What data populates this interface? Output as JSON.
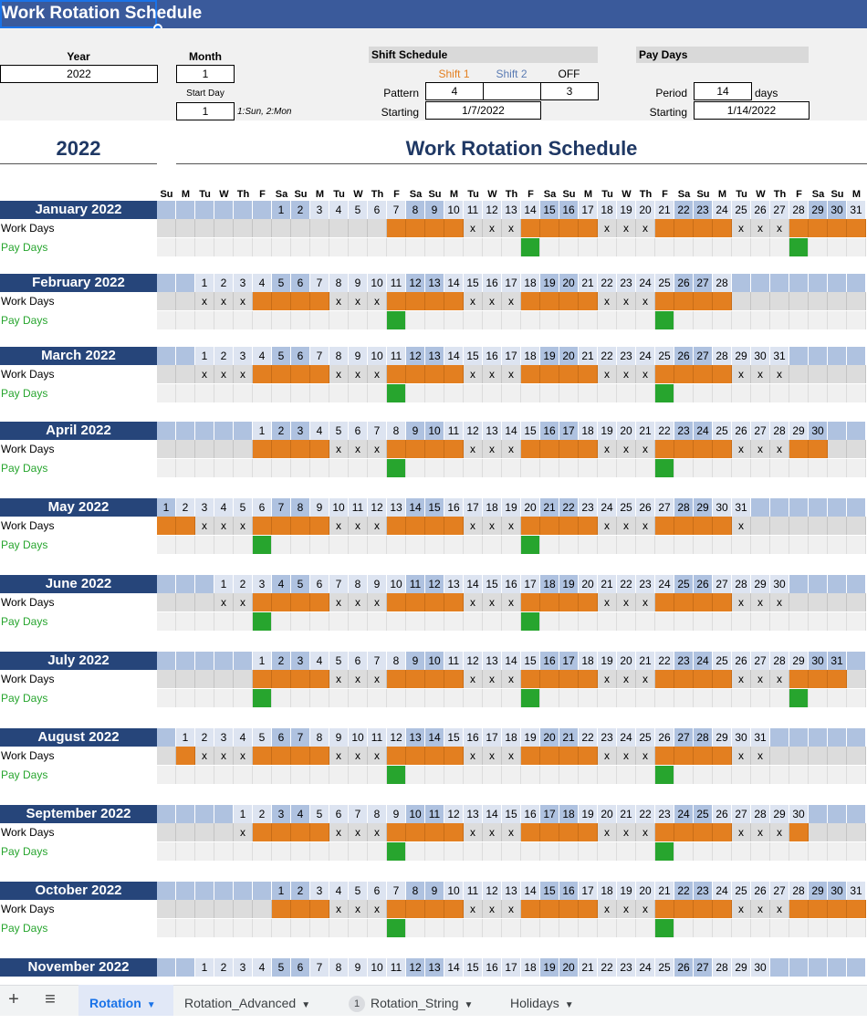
{
  "sheet": {
    "title": "Work Rotation Schedule",
    "year_label": "Year",
    "year_value": "2022",
    "month_label": "Month",
    "month_value": "1",
    "start_day_label": "Start Day",
    "start_day_value": "1",
    "start_day_hint": "1:Sun, 2:Mon",
    "shift_schedule_label": "Shift Schedule",
    "shift1_label": "Shift 1",
    "shift2_label": "Shift 2",
    "off_label": "OFF",
    "pattern_label": "Pattern",
    "pattern_shift1": "4",
    "pattern_shift2": "",
    "pattern_off": "3",
    "starting_label": "Starting",
    "shift_starting_value": "1/7/2022",
    "pay_days_label": "Pay Days",
    "period_label": "Period",
    "period_value": "14",
    "period_unit": "days",
    "pay_starting_value": "1/14/2022",
    "big_year": "2022",
    "big_title": "Work Rotation Schedule",
    "work_days_label": "Work Days",
    "pay_days_row_label": "Pay Days",
    "off_marker": "x"
  },
  "dow_headers": [
    "Su",
    "M",
    "Tu",
    "W",
    "Th",
    "F",
    "Sa",
    "Su",
    "M",
    "Tu",
    "W",
    "Th",
    "F",
    "Sa",
    "Su",
    "M",
    "Tu",
    "W",
    "Th",
    "F",
    "Sa",
    "Su",
    "M",
    "Tu",
    "W",
    "Th",
    "F",
    "Sa",
    "Su",
    "M",
    "Tu",
    "W",
    "Th",
    "F",
    "Sa",
    "Su",
    "M"
  ],
  "months": [
    {
      "name": "January 2022",
      "offset": 6,
      "days": 31,
      "visible_rows": 3,
      "work": [
        7,
        8,
        9,
        10,
        14,
        15,
        16,
        17,
        21,
        22,
        23,
        24,
        28,
        29,
        30,
        31
      ],
      "off": [
        11,
        12,
        13,
        18,
        19,
        20,
        25,
        26,
        27
      ],
      "pay": [
        14,
        28
      ]
    },
    {
      "name": "February 2022",
      "offset": 2,
      "days": 28,
      "visible_rows": 3,
      "work": [
        4,
        5,
        6,
        7,
        11,
        12,
        13,
        14,
        18,
        19,
        20,
        21,
        25,
        26,
        27,
        28
      ],
      "off": [
        1,
        2,
        3,
        8,
        9,
        10,
        15,
        16,
        17,
        22,
        23,
        24
      ],
      "pay": [
        11,
        25
      ]
    },
    {
      "name": "March 2022",
      "offset": 2,
      "days": 31,
      "visible_rows": 3,
      "work": [
        4,
        5,
        6,
        7,
        11,
        12,
        13,
        14,
        18,
        19,
        20,
        21,
        25,
        26,
        27,
        28
      ],
      "off": [
        1,
        2,
        3,
        8,
        9,
        10,
        15,
        16,
        17,
        22,
        23,
        24,
        29,
        30,
        31
      ],
      "pay": [
        11,
        25
      ]
    },
    {
      "name": "April 2022",
      "offset": 5,
      "days": 30,
      "visible_rows": 3,
      "work": [
        1,
        2,
        3,
        4,
        8,
        9,
        10,
        11,
        15,
        16,
        17,
        18,
        22,
        23,
        24,
        25,
        29,
        30
      ],
      "off": [
        5,
        6,
        7,
        12,
        13,
        14,
        19,
        20,
        21,
        26,
        27,
        28
      ],
      "pay": [
        8,
        22
      ]
    },
    {
      "name": "May 2022",
      "offset": 0,
      "days": 31,
      "visible_rows": 3,
      "work": [
        1,
        2,
        6,
        7,
        8,
        9,
        13,
        14,
        15,
        16,
        20,
        21,
        22,
        23,
        27,
        28,
        29,
        30
      ],
      "off": [
        3,
        4,
        5,
        10,
        11,
        12,
        17,
        18,
        19,
        24,
        25,
        26,
        31
      ],
      "pay": [
        6,
        20
      ]
    },
    {
      "name": "June 2022",
      "offset": 3,
      "days": 30,
      "visible_rows": 3,
      "work": [
        3,
        4,
        5,
        6,
        10,
        11,
        12,
        13,
        17,
        18,
        19,
        20,
        24,
        25,
        26,
        27
      ],
      "off": [
        1,
        2,
        7,
        8,
        9,
        14,
        15,
        16,
        21,
        22,
        23,
        28,
        29,
        30
      ],
      "pay": [
        3,
        17
      ]
    },
    {
      "name": "July 2022",
      "offset": 5,
      "days": 31,
      "visible_rows": 3,
      "work": [
        1,
        2,
        3,
        4,
        8,
        9,
        10,
        11,
        15,
        16,
        17,
        18,
        22,
        23,
        24,
        25,
        29,
        30,
        31
      ],
      "off": [
        5,
        6,
        7,
        12,
        13,
        14,
        19,
        20,
        21,
        26,
        27,
        28
      ],
      "pay": [
        1,
        15,
        29
      ]
    },
    {
      "name": "August 2022",
      "offset": 1,
      "days": 31,
      "visible_rows": 3,
      "work": [
        1,
        5,
        6,
        7,
        8,
        12,
        13,
        14,
        15,
        19,
        20,
        21,
        22,
        26,
        27,
        28,
        29
      ],
      "off": [
        2,
        3,
        4,
        9,
        10,
        11,
        16,
        17,
        18,
        23,
        24,
        25,
        30,
        31
      ],
      "pay": [
        12,
        26
      ]
    },
    {
      "name": "September 2022",
      "offset": 4,
      "days": 30,
      "visible_rows": 3,
      "work": [
        2,
        3,
        4,
        5,
        9,
        10,
        11,
        12,
        16,
        17,
        18,
        19,
        23,
        24,
        25,
        26,
        30
      ],
      "off": [
        1,
        6,
        7,
        8,
        13,
        14,
        15,
        20,
        21,
        22,
        27,
        28,
        29
      ],
      "pay": [
        9,
        23
      ]
    },
    {
      "name": "October 2022",
      "offset": 6,
      "days": 31,
      "visible_rows": 3,
      "work": [
        1,
        2,
        3,
        7,
        8,
        9,
        10,
        14,
        15,
        16,
        17,
        21,
        22,
        23,
        24,
        28,
        29,
        30,
        31
      ],
      "off": [
        4,
        5,
        6,
        11,
        12,
        13,
        18,
        19,
        20,
        25,
        26,
        27
      ],
      "pay": [
        7,
        21
      ]
    },
    {
      "name": "November 2022",
      "offset": 2,
      "days": 30,
      "visible_rows": 1,
      "work": [],
      "off": [],
      "pay": []
    }
  ],
  "tabs": {
    "add_icon": "plus-icon",
    "menu_icon": "hamburger-menu-icon",
    "rotation": "Rotation",
    "rotation_advanced": "Rotation_Advanced",
    "rotation_string_badge": "1",
    "rotation_string": "Rotation_String",
    "holidays": "Holidays"
  },
  "colors": {
    "title_bar": "#3a5a9b",
    "month_header": "#26457a",
    "work_day": "#e37f20",
    "pay_day": "#27a52e",
    "shift1_text": "#e37f20",
    "shift2_text": "#5a7bb3"
  }
}
